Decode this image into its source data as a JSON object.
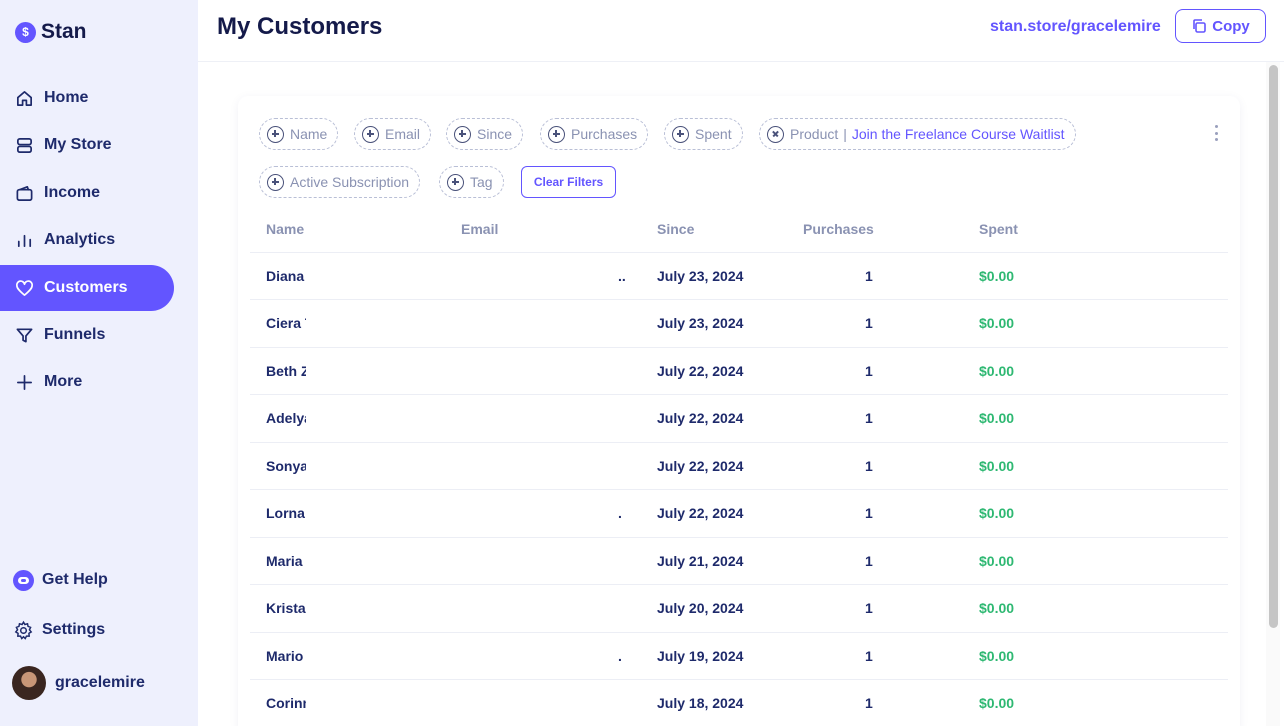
{
  "brand": {
    "name": "Stan",
    "logo_glyph": "$"
  },
  "nav": [
    {
      "label": "Home",
      "icon": "home-icon"
    },
    {
      "label": "My Store",
      "icon": "store-icon"
    },
    {
      "label": "Income",
      "icon": "wallet-icon"
    },
    {
      "label": "Analytics",
      "icon": "bar-chart-icon"
    },
    {
      "label": "Customers",
      "icon": "heart-icon",
      "active": true
    },
    {
      "label": "Funnels",
      "icon": "funnel-icon"
    },
    {
      "label": "More",
      "icon": "plus-icon"
    }
  ],
  "bottom_nav": {
    "help": "Get Help",
    "settings": "Settings",
    "user": "gracelemire"
  },
  "header": {
    "title": "My Customers",
    "store_link": "stan.store/gracelemire",
    "copy_label": "Copy"
  },
  "filters": {
    "chips": [
      "Name",
      "Email",
      "Since",
      "Purchases",
      "Spent"
    ],
    "product_filter": {
      "label": "Product",
      "value": "Join the Freelance Course Waitlist"
    },
    "chips_row2": [
      "Active Subscription",
      "Tag"
    ],
    "clear_label": "Clear Filters"
  },
  "table": {
    "columns": [
      "Name",
      "Email",
      "Since",
      "Purchases",
      "Spent"
    ],
    "rows": [
      {
        "name": "Diana",
        "email_tail": "..",
        "since": "July 23, 2024",
        "purchases": "1",
        "spent": "$0.00"
      },
      {
        "name": "Ciera T",
        "email_tail": "",
        "since": "July 23, 2024",
        "purchases": "1",
        "spent": "$0.00"
      },
      {
        "name": "Beth Z",
        "email_tail": "",
        "since": "July 22, 2024",
        "purchases": "1",
        "spent": "$0.00"
      },
      {
        "name": "Adelya",
        "email_tail": "",
        "since": "July 22, 2024",
        "purchases": "1",
        "spent": "$0.00"
      },
      {
        "name": "Sonya",
        "email_tail": "",
        "since": "July 22, 2024",
        "purchases": "1",
        "spent": "$0.00"
      },
      {
        "name": "Lorna",
        "email_tail": ".",
        "since": "July 22, 2024",
        "purchases": "1",
        "spent": "$0.00"
      },
      {
        "name": "Maria",
        "email_tail": "",
        "since": "July 21, 2024",
        "purchases": "1",
        "spent": "$0.00"
      },
      {
        "name": "Krista",
        "email_tail": "",
        "since": "July 20, 2024",
        "purchases": "1",
        "spent": "$0.00"
      },
      {
        "name": "Mario",
        "email_tail": ".",
        "since": "July 19, 2024",
        "purchases": "1",
        "spent": "$0.00"
      },
      {
        "name": "Corinn",
        "email_tail": "",
        "since": "July 18, 2024",
        "purchases": "1",
        "spent": "$0.00"
      }
    ]
  },
  "colors": {
    "accent": "#6355ff",
    "spent": "#2eb872",
    "sidebar_bg": "#eef0fd",
    "text": "#1e2a6b"
  }
}
